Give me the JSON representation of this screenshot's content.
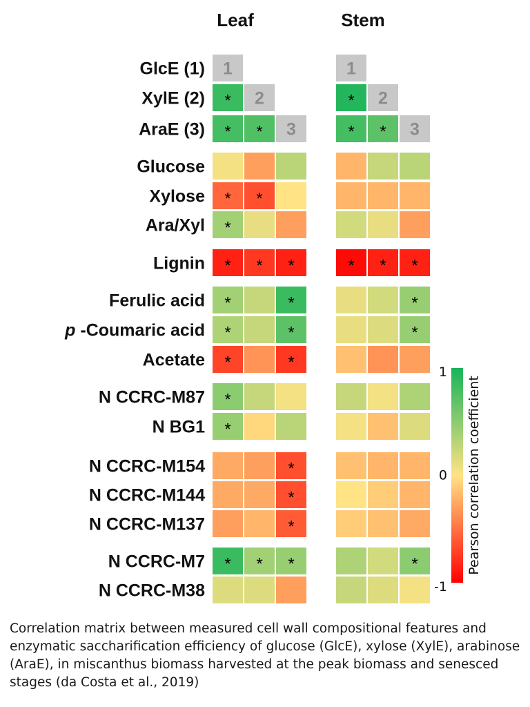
{
  "chart_data": {
    "type": "heatmap",
    "panels": [
      "Leaf",
      "Stem"
    ],
    "columns": [
      "1",
      "2",
      "3"
    ],
    "rows": [
      {
        "label": "GlcE (1)",
        "label_prefix": "",
        "leaf": [
          null,
          null,
          null
        ],
        "stem": [
          null,
          null,
          null
        ],
        "leaf_sig": [
          false,
          false,
          false
        ],
        "stem_sig": [
          false,
          false,
          false
        ],
        "leaf_idx": [
          1,
          0,
          0
        ],
        "stem_idx": [
          1,
          0,
          0
        ]
      },
      {
        "label": "XylE (2)",
        "label_prefix": "",
        "leaf": [
          0.85,
          null,
          null
        ],
        "stem": [
          0.95,
          null,
          null
        ],
        "leaf_sig": [
          true,
          false,
          false
        ],
        "stem_sig": [
          true,
          false,
          false
        ],
        "leaf_idx": [
          0,
          2,
          0
        ],
        "stem_idx": [
          0,
          2,
          0
        ]
      },
      {
        "label": "AraE (3)",
        "label_prefix": "",
        "leaf": [
          0.8,
          0.75,
          null
        ],
        "stem": [
          0.8,
          0.7,
          null
        ],
        "leaf_sig": [
          true,
          true,
          false
        ],
        "stem_sig": [
          true,
          true,
          false
        ],
        "leaf_idx": [
          0,
          0,
          3
        ],
        "stem_idx": [
          0,
          0,
          3
        ]
      },
      {
        "label": "Glucose",
        "label_prefix": "",
        "leaf": [
          0.05,
          -0.3,
          0.3
        ],
        "stem": [
          -0.2,
          0.25,
          0.3
        ],
        "leaf_sig": [
          false,
          false,
          false
        ],
        "stem_sig": [
          false,
          false,
          false
        ]
      },
      {
        "label": "Xylose",
        "label_prefix": "",
        "leaf": [
          -0.55,
          -0.65,
          0.0
        ],
        "stem": [
          -0.2,
          -0.2,
          -0.2
        ],
        "leaf_sig": [
          true,
          true,
          false
        ],
        "stem_sig": [
          false,
          false,
          false
        ]
      },
      {
        "label": "Ara/Xyl",
        "label_prefix": "",
        "leaf": [
          0.4,
          0.1,
          -0.3
        ],
        "stem": [
          0.2,
          0.1,
          -0.3
        ],
        "leaf_sig": [
          true,
          false,
          false
        ],
        "stem_sig": [
          false,
          false,
          false
        ]
      },
      {
        "label": "Lignin",
        "label_prefix": "",
        "leaf": [
          -0.85,
          -0.75,
          -0.85
        ],
        "stem": [
          -0.95,
          -0.85,
          -0.85
        ],
        "leaf_sig": [
          true,
          true,
          true
        ],
        "stem_sig": [
          true,
          true,
          true
        ]
      },
      {
        "label": "Ferulic acid",
        "label_prefix": "",
        "leaf": [
          0.4,
          0.25,
          0.85
        ],
        "stem": [
          0.1,
          0.2,
          0.45
        ],
        "leaf_sig": [
          true,
          false,
          true
        ],
        "stem_sig": [
          false,
          false,
          true
        ]
      },
      {
        "label": "-Coumaric acid",
        "label_prefix": "p",
        "leaf": [
          0.35,
          0.25,
          0.7
        ],
        "stem": [
          0.1,
          0.15,
          0.45
        ],
        "leaf_sig": [
          true,
          false,
          true
        ],
        "stem_sig": [
          false,
          false,
          true
        ]
      },
      {
        "label": "Acetate",
        "label_prefix": "",
        "leaf": [
          -0.7,
          -0.35,
          -0.75
        ],
        "stem": [
          -0.15,
          -0.35,
          -0.3
        ],
        "leaf_sig": [
          true,
          false,
          true
        ],
        "stem_sig": [
          false,
          false,
          false
        ]
      },
      {
        "label": "N CCRC-M87",
        "label_prefix": "",
        "leaf": [
          0.5,
          0.25,
          0.05
        ],
        "stem": [
          0.25,
          0.05,
          0.35
        ],
        "leaf_sig": [
          true,
          false,
          false
        ],
        "stem_sig": [
          false,
          false,
          false
        ]
      },
      {
        "label": "N BG1",
        "label_prefix": "",
        "leaf": [
          0.45,
          -0.05,
          0.3
        ],
        "stem": [
          0.05,
          -0.15,
          0.15
        ],
        "leaf_sig": [
          true,
          false,
          false
        ],
        "stem_sig": [
          false,
          false,
          false
        ]
      },
      {
        "label": "N CCRC-M154",
        "label_prefix": "",
        "leaf": [
          -0.25,
          -0.3,
          -0.65
        ],
        "stem": [
          -0.15,
          -0.2,
          -0.2
        ],
        "leaf_sig": [
          false,
          false,
          true
        ],
        "stem_sig": [
          false,
          false,
          false
        ]
      },
      {
        "label": "N CCRC-M144",
        "label_prefix": "",
        "leaf": [
          -0.25,
          -0.25,
          -0.65
        ],
        "stem": [
          0.0,
          -0.1,
          -0.2
        ],
        "leaf_sig": [
          false,
          false,
          true
        ],
        "stem_sig": [
          false,
          false,
          false
        ]
      },
      {
        "label": "N CCRC-M137",
        "label_prefix": "",
        "leaf": [
          -0.3,
          -0.2,
          -0.6
        ],
        "stem": [
          -0.1,
          -0.15,
          -0.25
        ],
        "leaf_sig": [
          false,
          false,
          true
        ],
        "stem_sig": [
          false,
          false,
          false
        ]
      },
      {
        "label": "N CCRC-M7",
        "label_prefix": "",
        "leaf": [
          0.85,
          0.4,
          0.45
        ],
        "stem": [
          0.35,
          0.2,
          0.5
        ],
        "leaf_sig": [
          true,
          true,
          true
        ],
        "stem_sig": [
          false,
          false,
          true
        ]
      },
      {
        "label": "N CCRC-M38",
        "label_prefix": "",
        "leaf": [
          0.15,
          0.15,
          -0.3
        ],
        "stem": [
          0.25,
          0.15,
          0.05
        ],
        "leaf_sig": [
          false,
          false,
          false
        ],
        "stem_sig": [
          false,
          false,
          false
        ]
      }
    ],
    "groups": [
      [
        0,
        1,
        2
      ],
      [
        3,
        4,
        5
      ],
      [
        6
      ],
      [
        7,
        8,
        9
      ],
      [
        10,
        11
      ],
      [
        12,
        13,
        14
      ],
      [
        15,
        16
      ]
    ],
    "significance_marker": "*",
    "colorbar": {
      "label": "Pearson correlation coefficient",
      "min": -1,
      "max": 1,
      "ticks": [
        {
          "value": 1,
          "text": "1"
        },
        {
          "value": 0,
          "text": "0"
        },
        {
          "value": -1,
          "text": "-1"
        }
      ]
    },
    "colors": {
      "low": "#ff0000",
      "mid": "#ffe385",
      "high": "#17b45a",
      "index_cell": "#c8c8c8",
      "index_text": "#8c8c8c"
    }
  },
  "caption": "Correlation matrix between measured cell wall compositional features and enzymatic saccharification efficiency of glucose (GlcE), xylose (XylE), arabinose (AraE), in miscanthus biomass harvested at the peak biomass and senesced stages (da Costa et al., 2019)"
}
